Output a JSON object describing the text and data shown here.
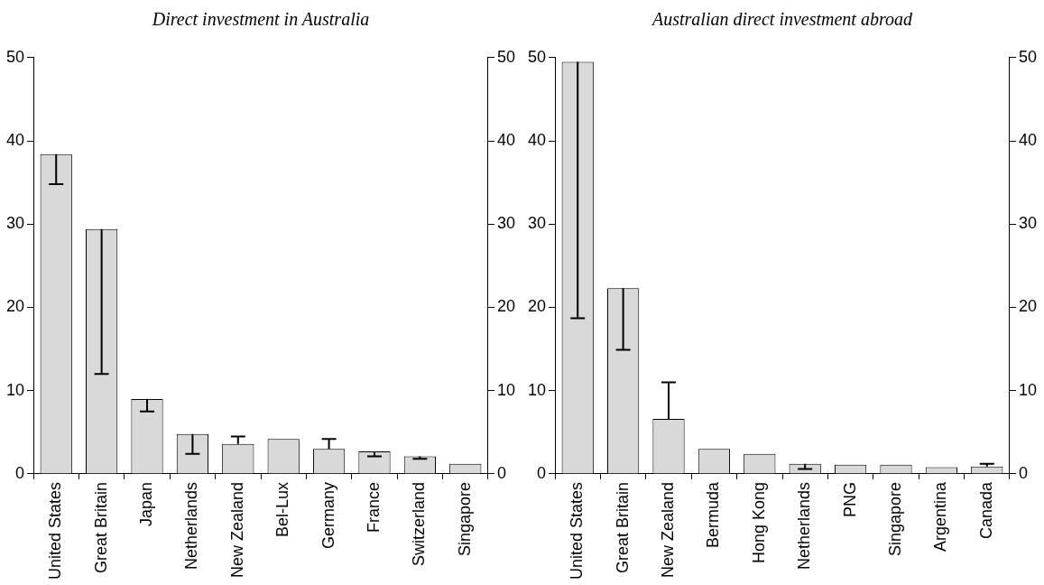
{
  "chart_data": [
    {
      "type": "bar",
      "title": "Direct investment in Australia",
      "categories": [
        "United States",
        "Great Britain",
        "Japan",
        "Netherlands",
        "New Zealand",
        "Bel-Lux",
        "Germany",
        "France",
        "Switzerland",
        "Singapore"
      ],
      "values": [
        38.4,
        29.4,
        9.0,
        4.8,
        3.6,
        4.2,
        3.0,
        2.7,
        2.1,
        1.2
      ],
      "errors": [
        [
          34.8,
          38.4
        ],
        [
          12.0,
          29.4
        ],
        [
          7.5,
          9.0
        ],
        [
          2.4,
          4.8
        ],
        [
          3.6,
          4.5
        ],
        null,
        [
          3.0,
          4.2
        ],
        [
          2.1,
          2.7
        ],
        [
          1.8,
          2.1
        ],
        null
      ],
      "color": "#d9d9d9",
      "ylim": [
        0,
        50
      ],
      "yticks": [
        0,
        10,
        20,
        30,
        40,
        50
      ],
      "y2lim": [
        0,
        50
      ],
      "y2ticks": [
        0,
        10,
        20,
        30,
        40,
        50
      ],
      "grid": false,
      "legend": false
    },
    {
      "type": "bar",
      "title": "Australian direct investment abroad",
      "categories": [
        "United States",
        "Great Britain",
        "New Zealand",
        "Bermuda",
        "Hong Kong",
        "Netherlands",
        "PNG",
        "Singapore",
        "Argentina",
        "Canada"
      ],
      "values": [
        49.5,
        22.3,
        6.6,
        3.0,
        2.4,
        1.2,
        1.1,
        1.1,
        0.8,
        0.9
      ],
      "errors": [
        [
          18.7,
          49.5
        ],
        [
          14.9,
          22.3
        ],
        [
          6.6,
          11.0
        ],
        null,
        null,
        [
          0.6,
          1.2
        ],
        null,
        null,
        null,
        [
          0.9,
          1.2
        ]
      ],
      "color": "#d9d9d9",
      "ylim": [
        0,
        50
      ],
      "yticks": [
        0,
        10,
        20,
        30,
        40,
        50
      ],
      "y2lim": [
        0,
        50
      ],
      "y2ticks": [
        0,
        10,
        20,
        30,
        40,
        50
      ],
      "grid": false,
      "legend": false
    }
  ]
}
